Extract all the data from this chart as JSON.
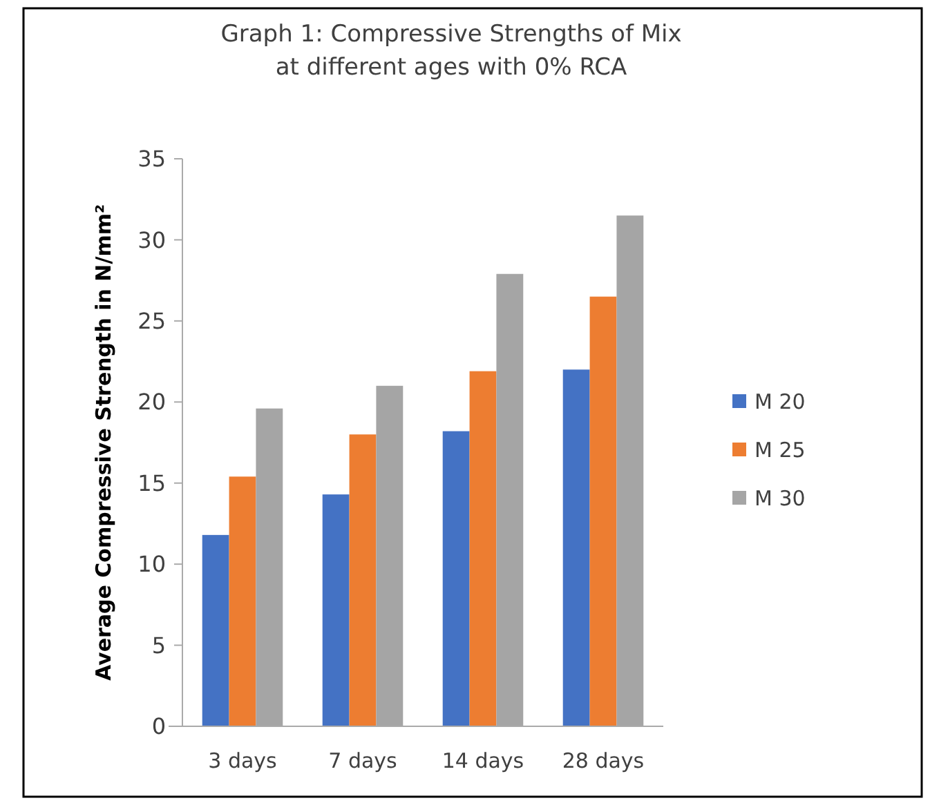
{
  "chart_data": {
    "type": "bar",
    "title": "Graph 1: Compressive Strengths of Mix at different ages with 0% RCA",
    "ylabel": "Average Compressive Strength in N/mm²",
    "categories": [
      "3 days",
      "7 days",
      "14 days",
      "28 days"
    ],
    "series": [
      {
        "name": "M 20",
        "color": "#4472c4",
        "values": [
          11.8,
          14.3,
          18.2,
          22.0
        ]
      },
      {
        "name": "M 25",
        "color": "#ed7d31",
        "values": [
          15.4,
          18.0,
          21.9,
          26.5
        ]
      },
      {
        "name": "M 30",
        "color": "#a5a5a5",
        "values": [
          19.6,
          21.0,
          27.9,
          31.5
        ]
      }
    ],
    "ylim": [
      0,
      35
    ],
    "yticks": [
      0,
      5,
      10,
      15,
      20,
      25,
      30,
      35
    ],
    "grid": false,
    "legend": "right"
  }
}
